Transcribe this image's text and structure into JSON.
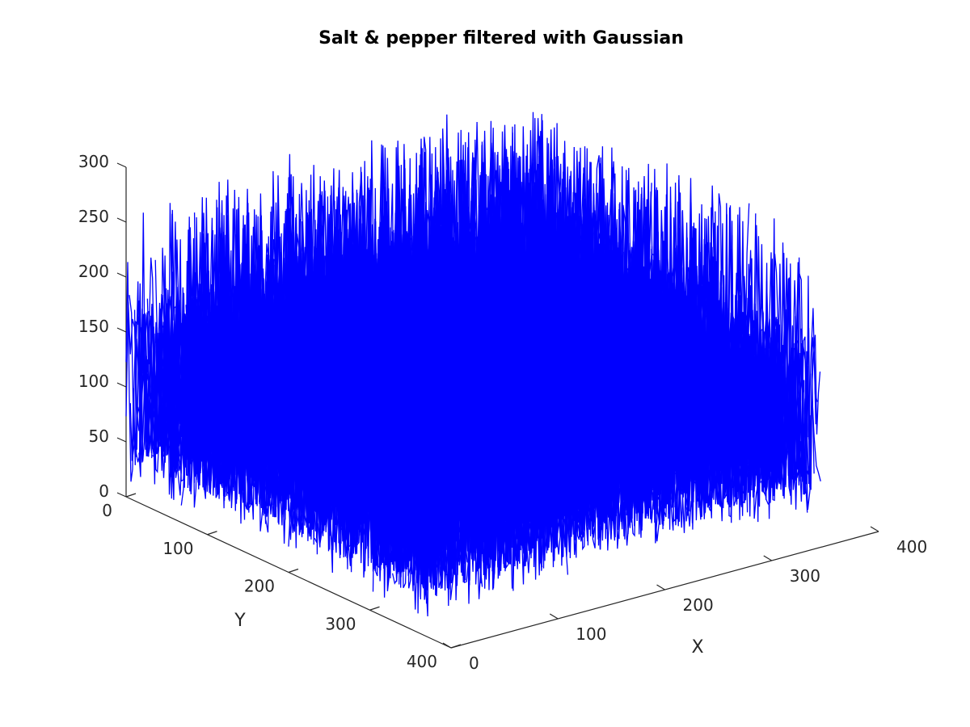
{
  "chart_data": {
    "type": "mesh3d",
    "title": "Salt & pepper filtered with Gaussian",
    "xlabel": "X",
    "ylabel": "Y",
    "zlabel": "",
    "xlim": [
      0,
      400
    ],
    "ylim": [
      0,
      400
    ],
    "zlim": [
      0,
      300
    ],
    "xticks": [
      "0",
      "100",
      "200",
      "300",
      "400"
    ],
    "yticks": [
      "0",
      "100",
      "200",
      "300",
      "400"
    ],
    "zticks": [
      "0",
      "50",
      "100",
      "150",
      "200",
      "250",
      "300"
    ],
    "grid": false,
    "legend": "none",
    "series": [
      {
        "color": "#0000ff",
        "note": "Dense mesh of intensity values over a ~370x370 grid; values mostly 20-200 with peaks near 300"
      }
    ],
    "value_range": [
      5,
      300
    ]
  }
}
